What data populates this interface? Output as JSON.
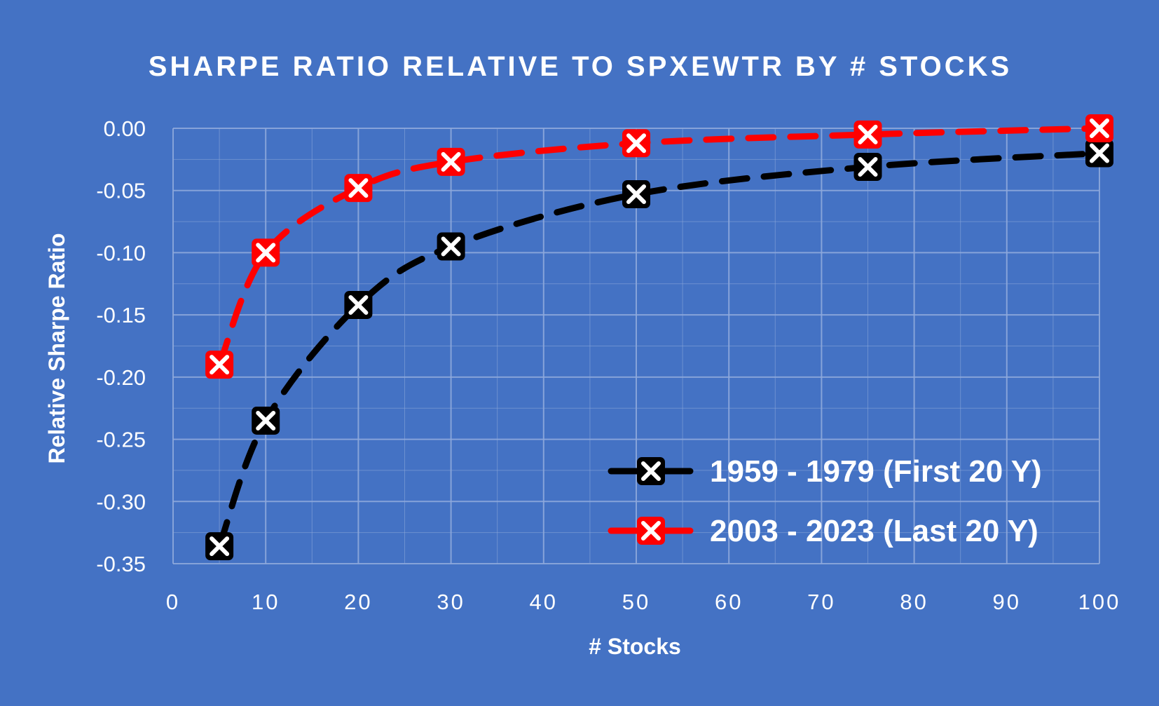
{
  "chart_data": {
    "type": "line",
    "title": "SHARPE RATIO RELATIVE TO SPXEWTR BY # STOCKS",
    "xlabel": "# Stocks",
    "ylabel": "Relative Sharpe Ratio",
    "xlim": [
      0,
      100
    ],
    "ylim": [
      -0.35,
      0.0
    ],
    "x_major_ticks": [
      0,
      10,
      20,
      30,
      40,
      50,
      60,
      70,
      80,
      90,
      100
    ],
    "x_tick_labels": [
      "0",
      "10",
      "20",
      "30",
      "40",
      "50",
      "60",
      "70",
      "80",
      "90",
      "100"
    ],
    "y_major_ticks": [
      0.0,
      -0.05,
      -0.1,
      -0.15,
      -0.2,
      -0.25,
      -0.3,
      -0.35
    ],
    "y_tick_labels": [
      "0.00",
      "-0.05",
      "-0.10",
      "-0.15",
      "-0.20",
      "-0.25",
      "-0.30",
      "-0.35"
    ],
    "x_minor_step": 5,
    "y_minor_step": 0.025,
    "grid": true,
    "legend_position": "bottom-right",
    "series": [
      {
        "name": "1959 - 1979 (First 20 Y)",
        "color": "#000000",
        "marker_fill": "#000000",
        "marker_cross": "#ffffff",
        "line_style": "dashed",
        "x": [
          5,
          10,
          20,
          30,
          50,
          75,
          100
        ],
        "values": [
          -0.336,
          -0.235,
          -0.142,
          -0.095,
          -0.053,
          -0.031,
          -0.02
        ]
      },
      {
        "name": "2003 - 2023 (Last 20 Y)",
        "color": "#FF0000",
        "marker_fill": "#FF0000",
        "marker_cross": "#ffffff",
        "line_style": "dashed",
        "x": [
          5,
          10,
          20,
          30,
          50,
          75,
          100
        ],
        "values": [
          -0.19,
          -0.1,
          -0.048,
          -0.027,
          -0.012,
          -0.005,
          0.0
        ]
      }
    ]
  },
  "colors": {
    "background": "#4472C4",
    "grid": "#8EA9DB",
    "text": "#ffffff"
  }
}
